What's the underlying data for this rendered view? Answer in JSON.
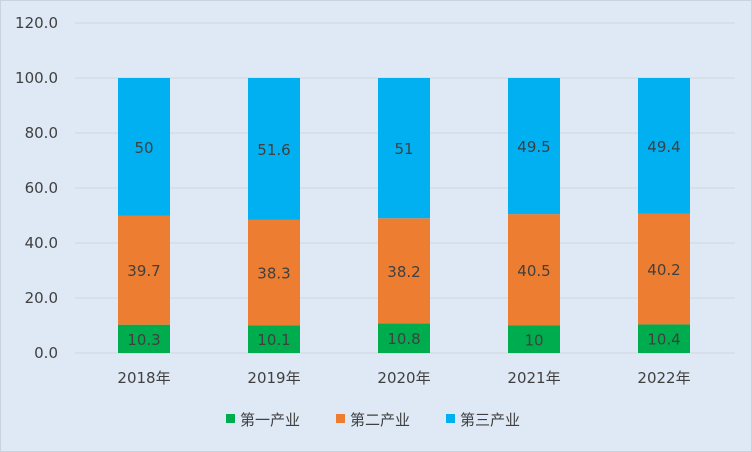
{
  "chart_data": {
    "type": "bar",
    "stacked": true,
    "title": "",
    "xlabel": "",
    "ylabel": "",
    "categories": [
      "2018年",
      "2019年",
      "2020年",
      "2021年",
      "2022年"
    ],
    "series": [
      {
        "name": "第一产业",
        "color": "#00ad4e",
        "values": [
          10.3,
          10.1,
          10.8,
          10.0,
          10.4
        ]
      },
      {
        "name": "第二产业",
        "color": "#ed7d31",
        "values": [
          39.7,
          38.3,
          38.2,
          40.5,
          40.2
        ]
      },
      {
        "name": "第三产业",
        "color": "#00b0f0",
        "values": [
          50.0,
          51.6,
          51.0,
          49.5,
          49.4
        ]
      }
    ],
    "ylim": [
      0,
      120
    ],
    "yticks": [
      "0.0",
      "20.0",
      "40.0",
      "60.0",
      "80.0",
      "100.0",
      "120.0"
    ],
    "grid": true,
    "legend": "bottom",
    "data_labels": true
  }
}
